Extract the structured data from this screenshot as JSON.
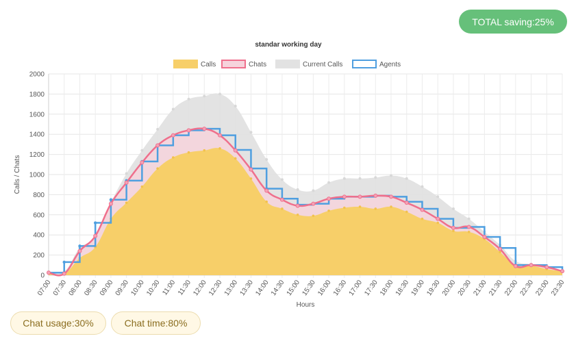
{
  "badges": {
    "total_saving": "TOTAL saving:25%",
    "chat_usage": "Chat usage:30%",
    "chat_time": "Chat time:80%"
  },
  "colors": {
    "calls": "#f7cf69",
    "chats": "#ef6f8c",
    "chats_fill": "#f6d3dc",
    "current_calls": "#e2e2e2",
    "agents": "#4f9fe0",
    "badge_green": "#66c07a"
  },
  "chart_data": {
    "type": "area",
    "title": "standar working day",
    "xlabel": "Hours",
    "ylabel": "Calls / Chats",
    "ylim": [
      0,
      2000
    ],
    "yticks": [
      0,
      200,
      400,
      600,
      800,
      1000,
      1200,
      1400,
      1600,
      1800,
      2000
    ],
    "grid": true,
    "legend_position": "top",
    "categories": [
      "07:00",
      "07:30",
      "08:00",
      "08:30",
      "09:00",
      "09:30",
      "10:00",
      "10:30",
      "11:00",
      "11:30",
      "12:00",
      "12:30",
      "13:00",
      "13:30",
      "14:00",
      "14:30",
      "15:00",
      "15:30",
      "16:00",
      "16:30",
      "17:00",
      "17:30",
      "18:00",
      "18:30",
      "19:00",
      "19:30",
      "20:00",
      "20:30",
      "21:00",
      "21:30",
      "22:00",
      "22:30",
      "23:00",
      "23:30"
    ],
    "series": [
      {
        "name": "Calls",
        "kind": "area",
        "values": [
          25,
          15,
          170,
          280,
          560,
          720,
          880,
          1060,
          1170,
          1220,
          1240,
          1260,
          1160,
          960,
          730,
          660,
          600,
          590,
          640,
          670,
          680,
          660,
          680,
          630,
          560,
          520,
          440,
          430,
          360,
          230,
          100,
          95,
          60,
          40
        ]
      },
      {
        "name": "Chats",
        "kind": "line",
        "values": [
          25,
          15,
          240,
          390,
          710,
          920,
          1120,
          1290,
          1390,
          1440,
          1455,
          1390,
          1240,
          1050,
          840,
          750,
          690,
          710,
          760,
          780,
          780,
          790,
          780,
          720,
          650,
          560,
          470,
          480,
          380,
          260,
          90,
          100,
          80,
          40
        ]
      },
      {
        "name": "Current Calls",
        "kind": "area",
        "values": [
          35,
          35,
          270,
          380,
          720,
          1010,
          1240,
          1450,
          1650,
          1750,
          1780,
          1800,
          1680,
          1420,
          1150,
          950,
          850,
          840,
          920,
          960,
          960,
          970,
          990,
          960,
          880,
          780,
          660,
          560,
          430,
          300,
          140,
          110,
          70,
          40
        ]
      },
      {
        "name": "Agents",
        "kind": "step",
        "values": [
          25,
          130,
          290,
          520,
          750,
          940,
          1130,
          1290,
          1390,
          1440,
          1455,
          1390,
          1245,
          1060,
          860,
          760,
          700,
          710,
          760,
          780,
          780,
          790,
          780,
          730,
          660,
          560,
          470,
          480,
          380,
          270,
          100,
          100,
          80,
          40
        ]
      }
    ]
  }
}
